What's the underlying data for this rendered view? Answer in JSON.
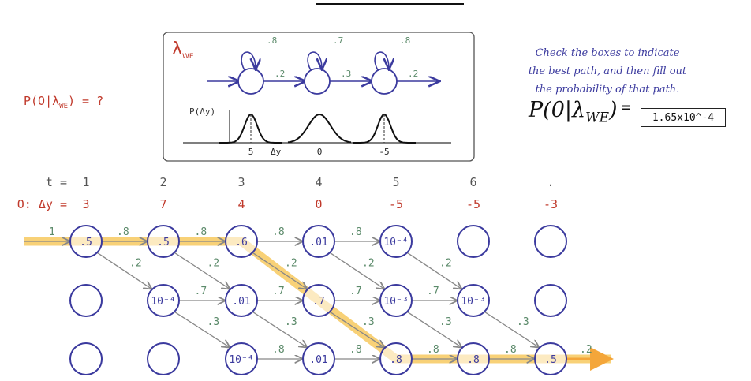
{
  "question": {
    "text": "P(O|λ",
    "sub": "WE",
    "tail": ") = ?"
  },
  "model": {
    "title": "λ",
    "title_sub": "WE",
    "self_loops": [
      ".8",
      ".7",
      ".8"
    ],
    "transitions": [
      ".2",
      ".3",
      ".2"
    ],
    "emission_ylabel": "P(Δy)",
    "emission_xlabel": "Δy",
    "emission_means": [
      "5",
      "0",
      "-5"
    ]
  },
  "instructions": {
    "line1": "Check the boxes to indicate",
    "line2": "the best path, and then fill out",
    "line3": "the probability of that path."
  },
  "answer": {
    "lhs": "P(0|λ",
    "lhs_sub": "WE",
    "lhs_tail": ")",
    "eq": "=",
    "value": "1.65x10^-4"
  },
  "trellis": {
    "t_label": "t =",
    "times": [
      "1",
      "2",
      "3",
      "4",
      "5",
      "6",
      "."
    ],
    "obs_label": "O: Δy =",
    "observations": [
      "3",
      "7",
      "4",
      "0",
      "-5",
      "-5",
      "-3"
    ],
    "initial_prob": "1",
    "row1": [
      ".5",
      ".5",
      ".6",
      ".01",
      "10⁻⁴",
      "",
      ""
    ],
    "row2": [
      "",
      "10⁻⁴",
      ".01",
      ".7",
      "10⁻³",
      "10⁻³",
      ""
    ],
    "row3": [
      "",
      "",
      "10⁻⁴",
      ".01",
      ".8",
      ".8",
      ".5"
    ],
    "self_labels_row1": [
      ".8",
      ".8",
      ".8",
      ".8"
    ],
    "self_labels_row2": [
      ".7",
      ".7",
      ".7",
      ".7"
    ],
    "self_labels_row3": [
      ".8",
      ".8",
      ".8",
      ".8"
    ],
    "down_labels_1to2": [
      ".2",
      ".2",
      ".2",
      ".2",
      ".2"
    ],
    "down_labels_2to3": [
      ".3",
      ".3",
      ".3",
      ".3",
      ".3"
    ],
    "final_exit": ".2"
  },
  "colors": {
    "state": "#3b3a9e",
    "red": "#c0392b",
    "green": "#5b8a6a",
    "highlight": "#f6c24a",
    "arrow": "#888888"
  }
}
